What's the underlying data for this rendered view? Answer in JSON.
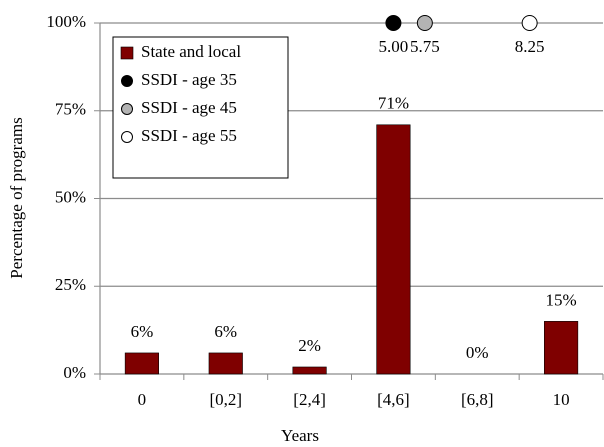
{
  "chart_data": {
    "type": "bar",
    "categories": [
      "0",
      "[0,2]",
      "[2,4]",
      "[4,6]",
      "[6,8]",
      "10"
    ],
    "series": [
      {
        "name": "State and local",
        "color": "#7f0000",
        "values": [
          6,
          6,
          2,
          71,
          0,
          15
        ],
        "value_labels": [
          "6%",
          "6%",
          "2%",
          "71%",
          "0%",
          "15%"
        ]
      }
    ],
    "markers": [
      {
        "name": "SSDI - age 35",
        "color": "#000000",
        "x": [
          5
        ],
        "y": [
          100
        ],
        "value_labels": [
          "5.00"
        ]
      },
      {
        "name": "SSDI - age 45",
        "color": "#b3b3b3",
        "x": [
          5.75
        ],
        "y": [
          100
        ],
        "value_labels": [
          "5.75"
        ]
      },
      {
        "name": "SSDI - age 55",
        "color": "#ffffff",
        "x": [
          8.25
        ],
        "y": [
          100
        ],
        "value_labels": [
          "8.25"
        ]
      }
    ],
    "xlim": [
      -2,
      10
    ],
    "ylim": [
      0,
      100
    ],
    "yticks": [
      {
        "value": 0,
        "label": "0%"
      },
      {
        "value": 25,
        "label": "25%"
      },
      {
        "value": 50,
        "label": "50%"
      },
      {
        "value": 75,
        "label": "75%"
      },
      {
        "value": 100,
        "label": "100%"
      }
    ],
    "xlabel": "Years",
    "ylabel": "Percentage of programs",
    "grid": true,
    "legend": "upper left"
  }
}
